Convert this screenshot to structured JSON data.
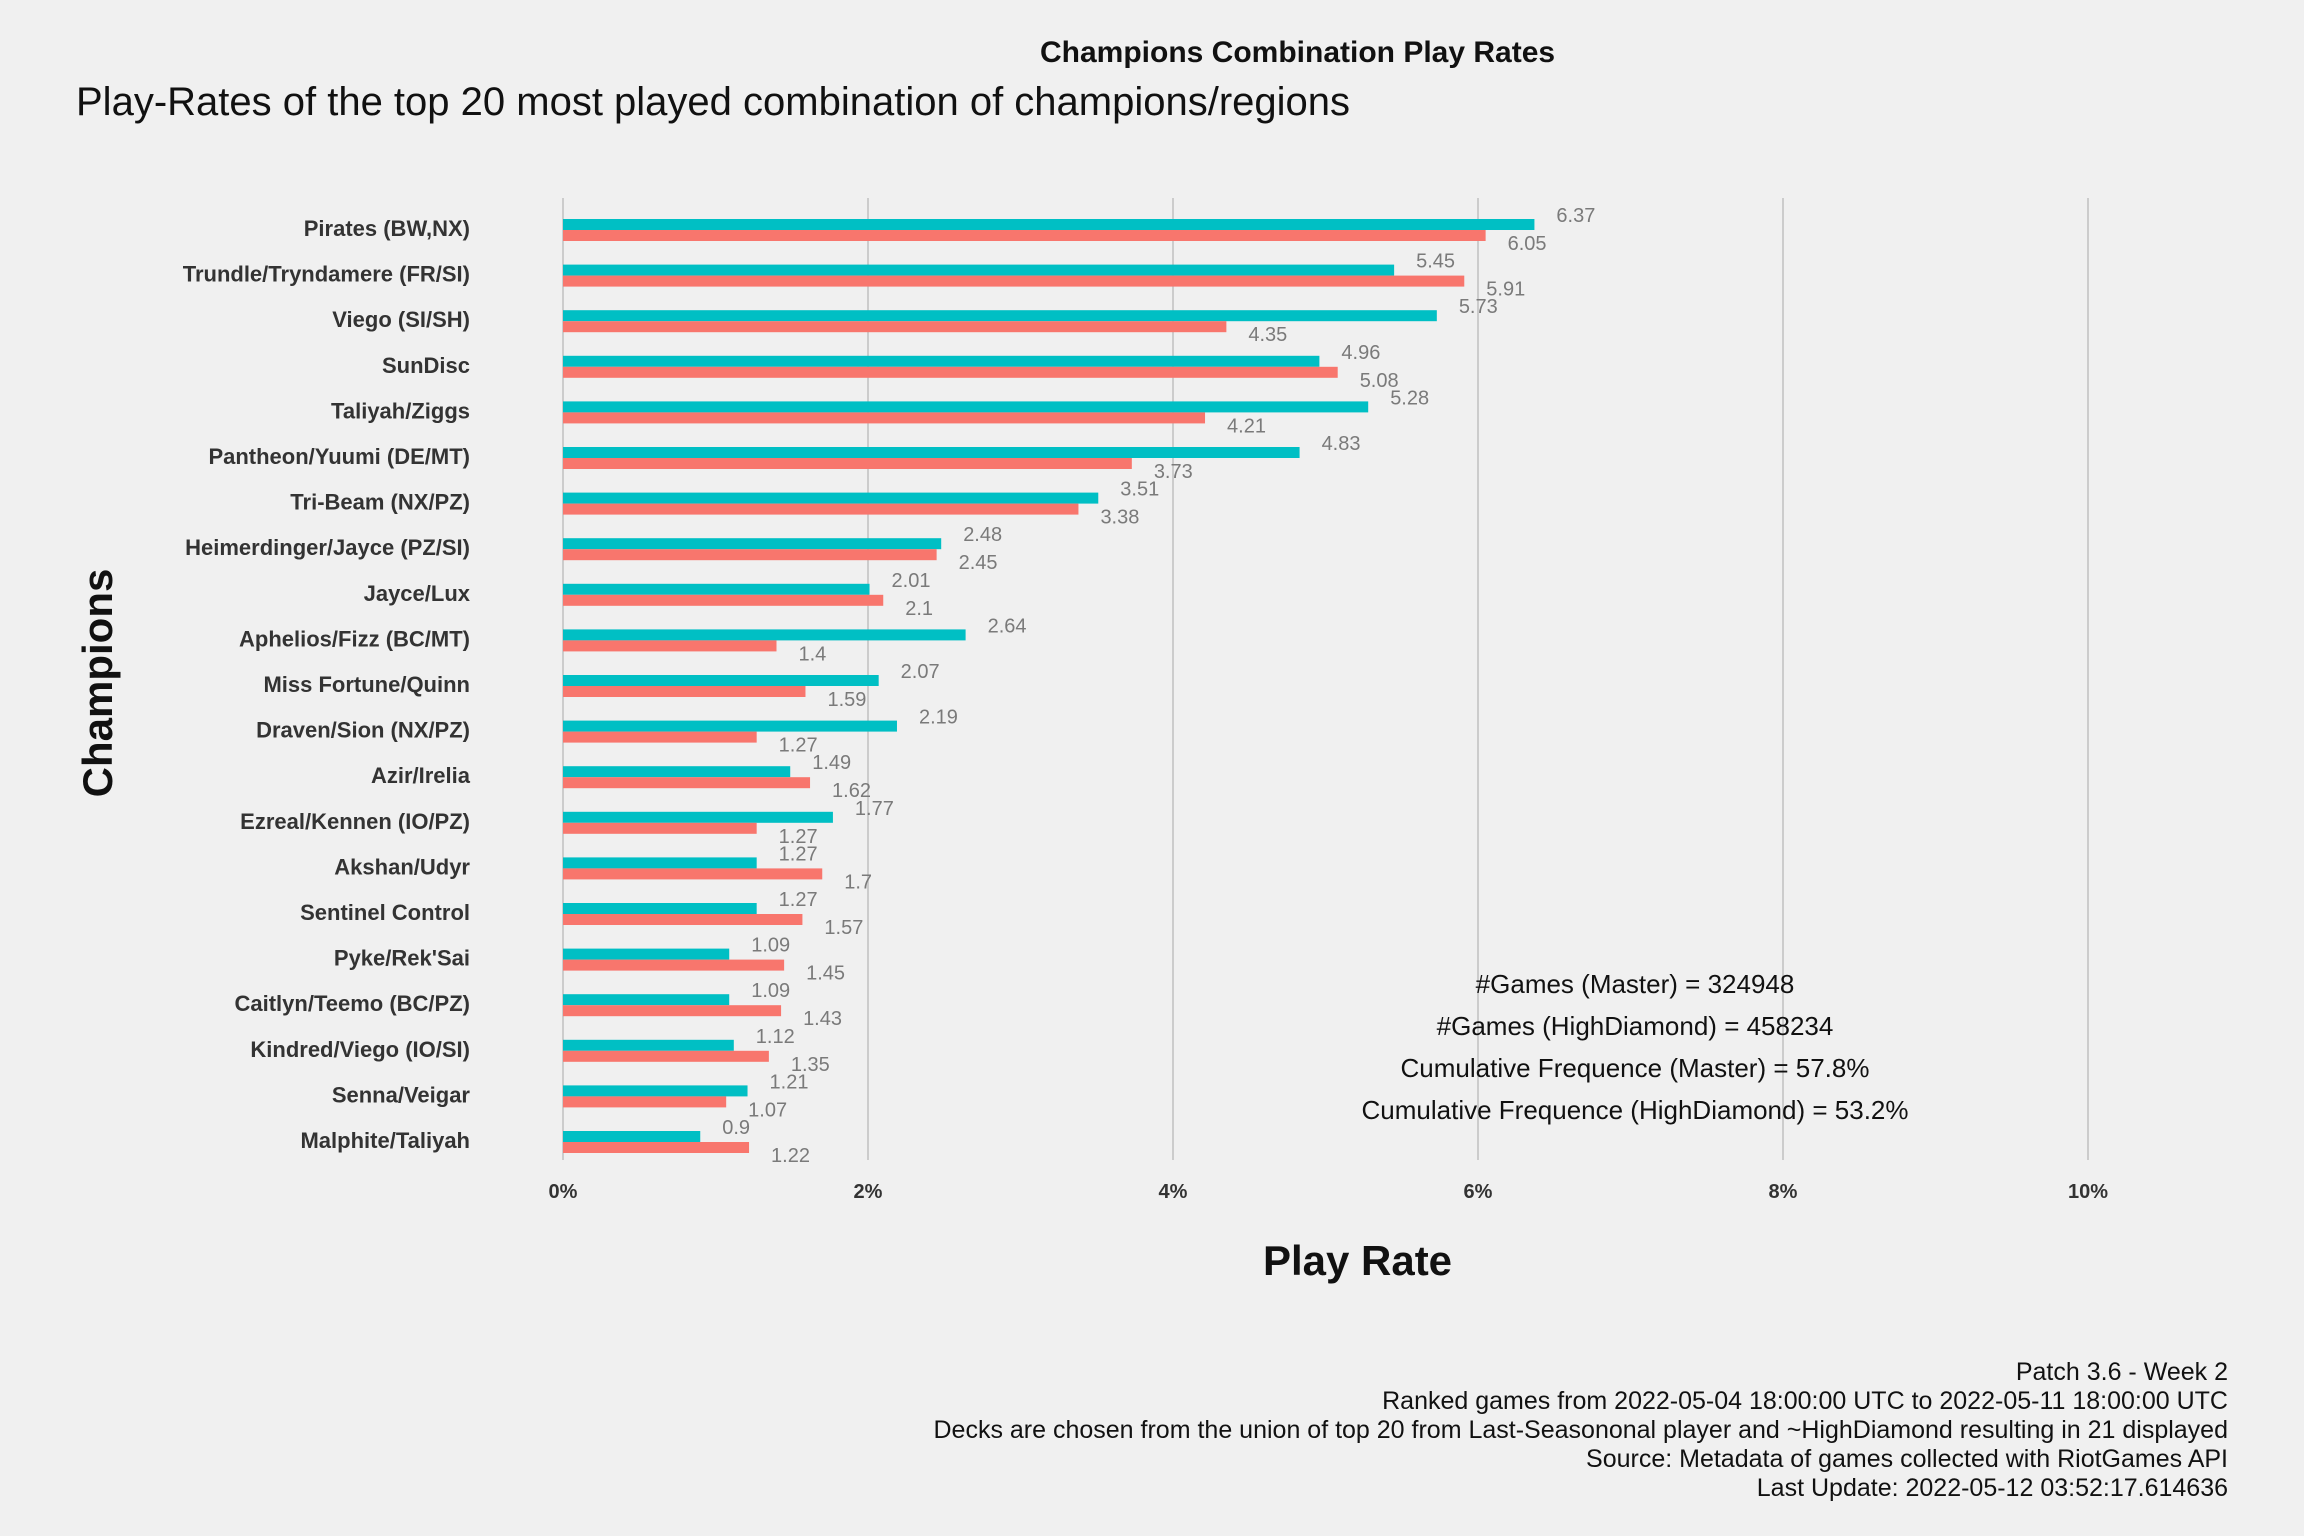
{
  "chart_data": {
    "type": "bar",
    "orientation": "horizontal",
    "title": "Champions Combination Play Rates",
    "subtitle": "Play-Rates of the top 20 most played combination of champions/regions",
    "xlabel": "Play Rate",
    "ylabel": "Champions",
    "xlim": [
      0,
      10
    ],
    "x_ticks": [
      "0%",
      "2%",
      "4%",
      "6%",
      "8%",
      "10%"
    ],
    "grid": "vertical major gridlines",
    "legend": "none",
    "categories": [
      "Pirates (BW,NX)",
      "Trundle/Tryndamere (FR/SI)",
      "Viego (SI/SH)",
      "SunDisc",
      "Taliyah/Ziggs",
      "Pantheon/Yuumi (DE/MT)",
      "Tri-Beam (NX/PZ)",
      "Heimerdinger/Jayce (PZ/SI)",
      "Jayce/Lux",
      "Aphelios/Fizz (BC/MT)",
      "Miss Fortune/Quinn",
      "Draven/Sion (NX/PZ)",
      "Azir/Irelia",
      "Ezreal/Kennen (IO/PZ)",
      "Akshan/Udyr",
      "Sentinel Control",
      "Pyke/Rek'Sai",
      "Caitlyn/Teemo (BC/PZ)",
      "Kindred/Viego (IO/SI)",
      "Senna/Veigar",
      "Malphite/Taliyah"
    ],
    "series": [
      {
        "color": "#00bfc4",
        "values": [
          6.37,
          5.45,
          5.73,
          4.96,
          5.28,
          4.83,
          3.51,
          2.48,
          2.01,
          2.64,
          2.07,
          2.19,
          1.49,
          1.77,
          1.27,
          1.27,
          1.09,
          1.09,
          1.12,
          1.21,
          0.9
        ]
      },
      {
        "color": "#f8766d",
        "values": [
          6.05,
          5.91,
          4.35,
          5.08,
          4.21,
          3.73,
          3.38,
          2.45,
          2.1,
          1.4,
          1.59,
          1.27,
          1.62,
          1.27,
          1.7,
          1.57,
          1.45,
          1.43,
          1.35,
          1.07,
          1.22
        ]
      }
    ],
    "value_labels": [
      [
        "6.37",
        "5.45",
        "5.73",
        "4.96",
        "5.28",
        "4.83",
        "3.51",
        "2.48",
        "2.01",
        "2.64",
        "2.07",
        "2.19",
        "1.49",
        "1.77",
        "1.27",
        "1.27",
        "1.09",
        "1.09",
        "1.12",
        "1.21",
        "0.9"
      ],
      [
        "6.05",
        "5.91",
        "4.35",
        "5.08",
        "4.21",
        "3.73",
        "3.38",
        "2.45",
        "2.1",
        "1.4",
        "1.59",
        "1.27",
        "1.62",
        "1.27",
        "1.7",
        "1.57",
        "1.45",
        "1.43",
        "1.35",
        "1.07",
        "1.22"
      ]
    ],
    "annotations": [
      "#Games (Master) = 324948",
      "#Games (HighDiamond) = 458234",
      "Cumulative Frequence (Master) = 57.8%",
      "Cumulative Frequence (HighDiamond) = 53.2%"
    ]
  },
  "caption": [
    "Patch 3.6 - Week 2",
    "Ranked games from 2022-05-04 18:00:00 UTC to 2022-05-11 18:00:00 UTC",
    "Decks are chosen from the union of top 20 from Last-Seasononal player and ~HighDiamond resulting in 21 displayed",
    "Source: Metadata of games collected with RiotGames API",
    "Last Update: 2022-05-12 03:52:17.614636"
  ]
}
